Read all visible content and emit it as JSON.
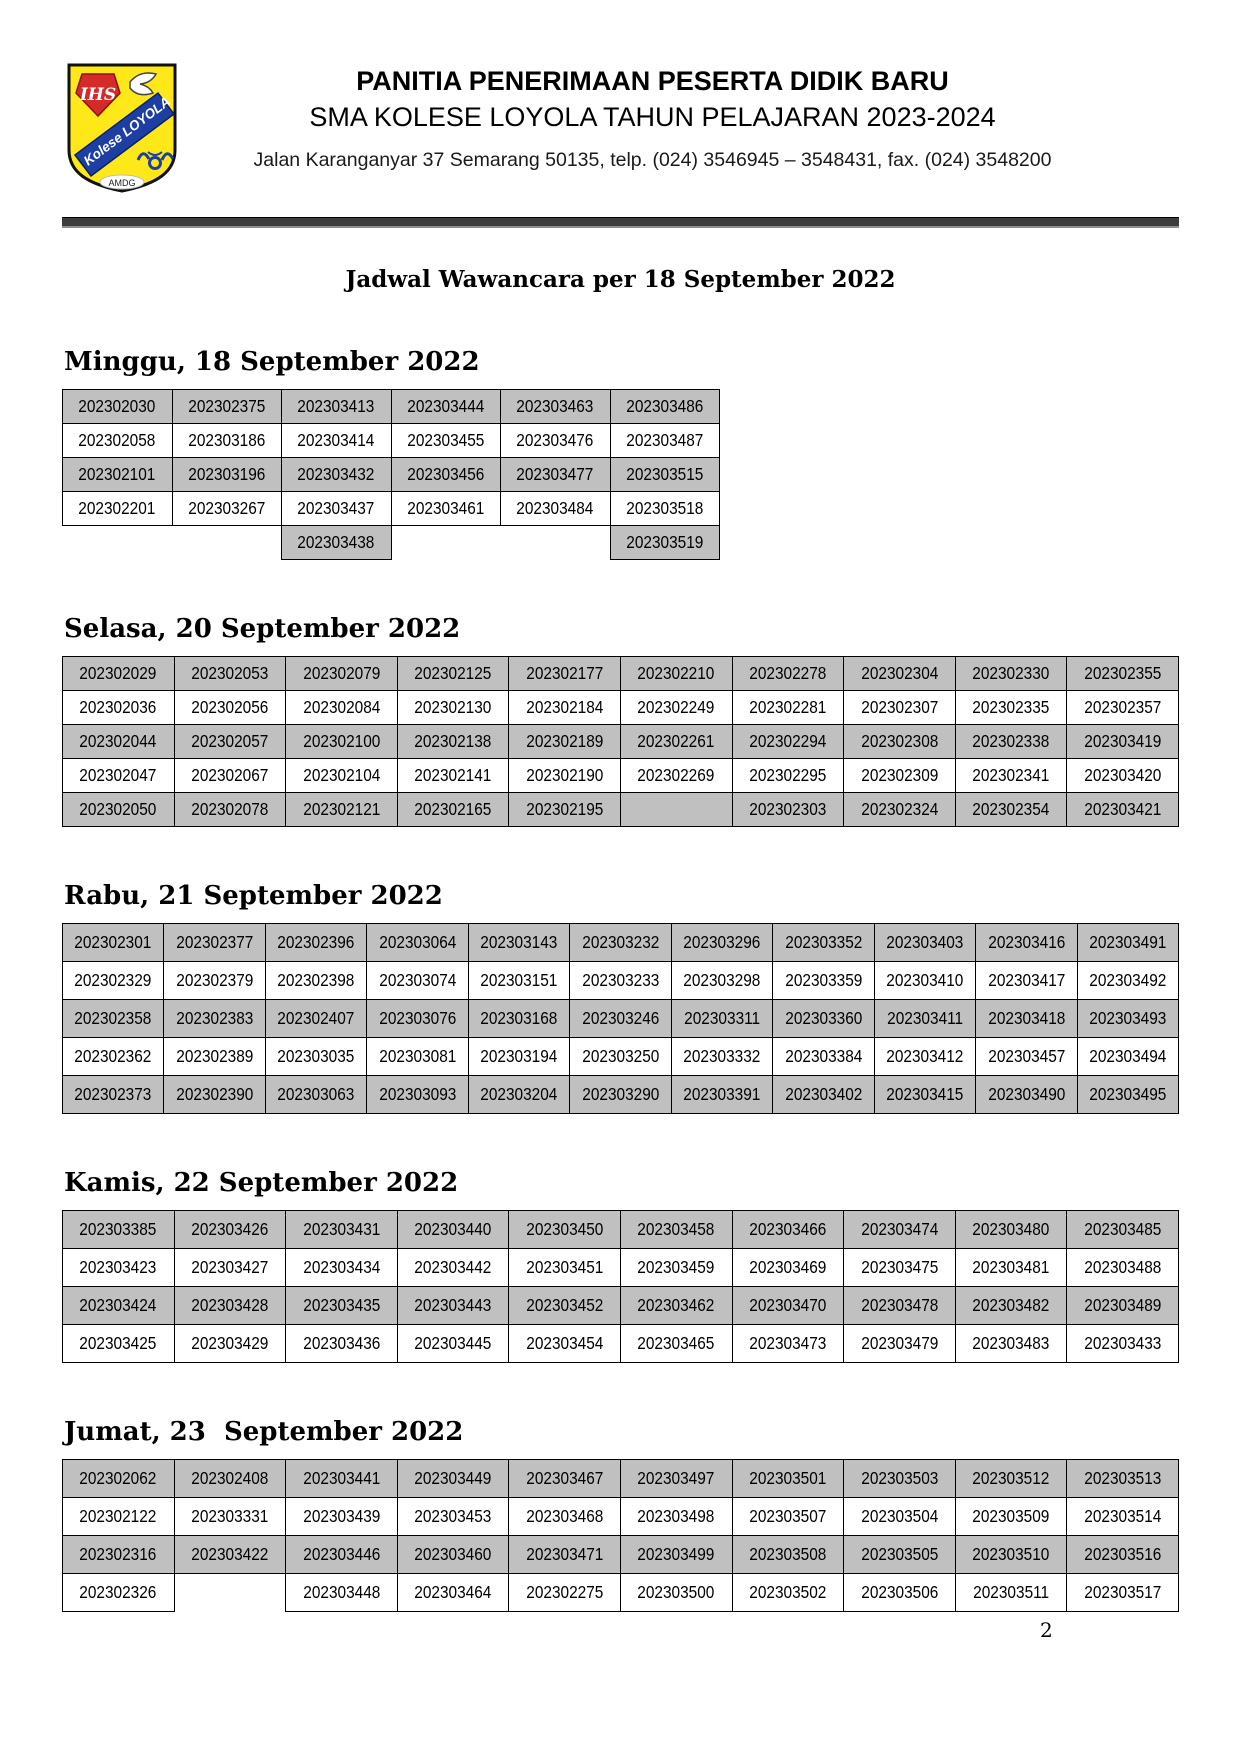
{
  "header": {
    "line1": "PANITIA PENERIMAAN PESERTA DIDIK BARU",
    "line2": "SMA KOLESE LOYOLA TAHUN PELAJARAN 2023-2024",
    "line3": "Jalan Karanganyar 37 Semarang 50135, telp. (024) 3546945 – 3548431, fax. (024) 3548200",
    "logo": {
      "ihs": "IHS",
      "ribbon": "Kolese LOYOLA",
      "amdg": "AMDG"
    }
  },
  "title": "Jadwal Wawancara per 18 September 2022",
  "page_number": "2",
  "colors": {
    "cell_shade": "#c0c0c0",
    "shield_yellow": "#ffe81a",
    "ribbon_blue": "#1d3fa3",
    "emblem_red": "#d42a2a",
    "rule_dark": "#3c3c3c"
  },
  "sections": [
    {
      "heading": "Minggu, 18 September 2022",
      "rows": [
        [
          "202302030",
          "202302375",
          "202303413",
          "202303444",
          "202303463",
          "202303486"
        ],
        [
          "202302058",
          "202303186",
          "202303414",
          "202303455",
          "202303476",
          "202303487"
        ],
        [
          "202302101",
          "202303196",
          "202303432",
          "202303456",
          "202303477",
          "202303515"
        ],
        [
          "202302201",
          "202303267",
          "202303437",
          "202303461",
          "202303484",
          "202303518"
        ],
        [
          null,
          null,
          "202303438",
          null,
          null,
          "202303519"
        ]
      ]
    },
    {
      "heading": "Selasa, 20 September 2022",
      "rows": [
        [
          "202302029",
          "202302053",
          "202302079",
          "202302125",
          "202302177",
          "202302210",
          "202302278",
          "202302304",
          "202302330",
          "202302355"
        ],
        [
          "202302036",
          "202302056",
          "202302084",
          "202302130",
          "202302184",
          "202302249",
          "202302281",
          "202302307",
          "202302335",
          "202302357"
        ],
        [
          "202302044",
          "202302057",
          "202302100",
          "202302138",
          "202302189",
          "202302261",
          "202302294",
          "202302308",
          "202302338",
          "202303419"
        ],
        [
          "202302047",
          "202302067",
          "202302104",
          "202302141",
          "202302190",
          "202302269",
          "202302295",
          "202302309",
          "202302341",
          "202303420"
        ],
        [
          "202302050",
          "202302078",
          "202302121",
          "202302165",
          "202302195",
          "",
          "202302303",
          "202302324",
          "202302354",
          "202303421"
        ]
      ]
    },
    {
      "heading": "Rabu, 21 September 2022",
      "rows": [
        [
          "202302301",
          "202302377",
          "202302396",
          "202303064",
          "202303143",
          "202303232",
          "202303296",
          "202303352",
          "202303403",
          "202303416",
          "202303491"
        ],
        [
          "202302329",
          "202302379",
          "202302398",
          "202303074",
          "202303151",
          "202303233",
          "202303298",
          "202303359",
          "202303410",
          "202303417",
          "202303492"
        ],
        [
          "202302358",
          "202302383",
          "202302407",
          "202303076",
          "202303168",
          "202303246",
          "202303311",
          "202303360",
          "202303411",
          "202303418",
          "202303493"
        ],
        [
          "202302362",
          "202302389",
          "202303035",
          "202303081",
          "202303194",
          "202303250",
          "202303332",
          "202303384",
          "202303412",
          "202303457",
          "202303494"
        ],
        [
          "202302373",
          "202302390",
          "202303063",
          "202303093",
          "202303204",
          "202303290",
          "202303391",
          "202303402",
          "202303415",
          "202303490",
          "202303495"
        ]
      ]
    },
    {
      "heading": "Kamis, 22 September 2022",
      "rows": [
        [
          "202303385",
          "202303426",
          "202303431",
          "202303440",
          "202303450",
          "202303458",
          "202303466",
          "202303474",
          "202303480",
          "202303485"
        ],
        [
          "202303423",
          "202303427",
          "202303434",
          "202303442",
          "202303451",
          "202303459",
          "202303469",
          "202303475",
          "202303481",
          "202303488"
        ],
        [
          "202303424",
          "202303428",
          "202303435",
          "202303443",
          "202303452",
          "202303462",
          "202303470",
          "202303478",
          "202303482",
          "202303489"
        ],
        [
          "202303425",
          "202303429",
          "202303436",
          "202303445",
          "202303454",
          "202303465",
          "202303473",
          "202303479",
          "202303483",
          "202303433"
        ]
      ]
    },
    {
      "heading": "Jumat, 23  September 2022",
      "rows": [
        [
          "202302062",
          "202302408",
          "202303441",
          "202303449",
          "202303467",
          "202303497",
          "202303501",
          "202303503",
          "202303512",
          "202303513"
        ],
        [
          "202302122",
          "202303331",
          "202303439",
          "202303453",
          "202303468",
          "202303498",
          "202303507",
          "202303504",
          "202303509",
          "202303514"
        ],
        [
          "202302316",
          "202303422",
          "202303446",
          "202303460",
          "202303471",
          "202303499",
          "202303508",
          "202303505",
          "202303510",
          "202303516"
        ],
        [
          "202302326",
          null,
          "202303448",
          "202303464",
          "202302275",
          "202303500",
          "202303502",
          "202303506",
          "202303511",
          "202303517"
        ]
      ]
    }
  ]
}
